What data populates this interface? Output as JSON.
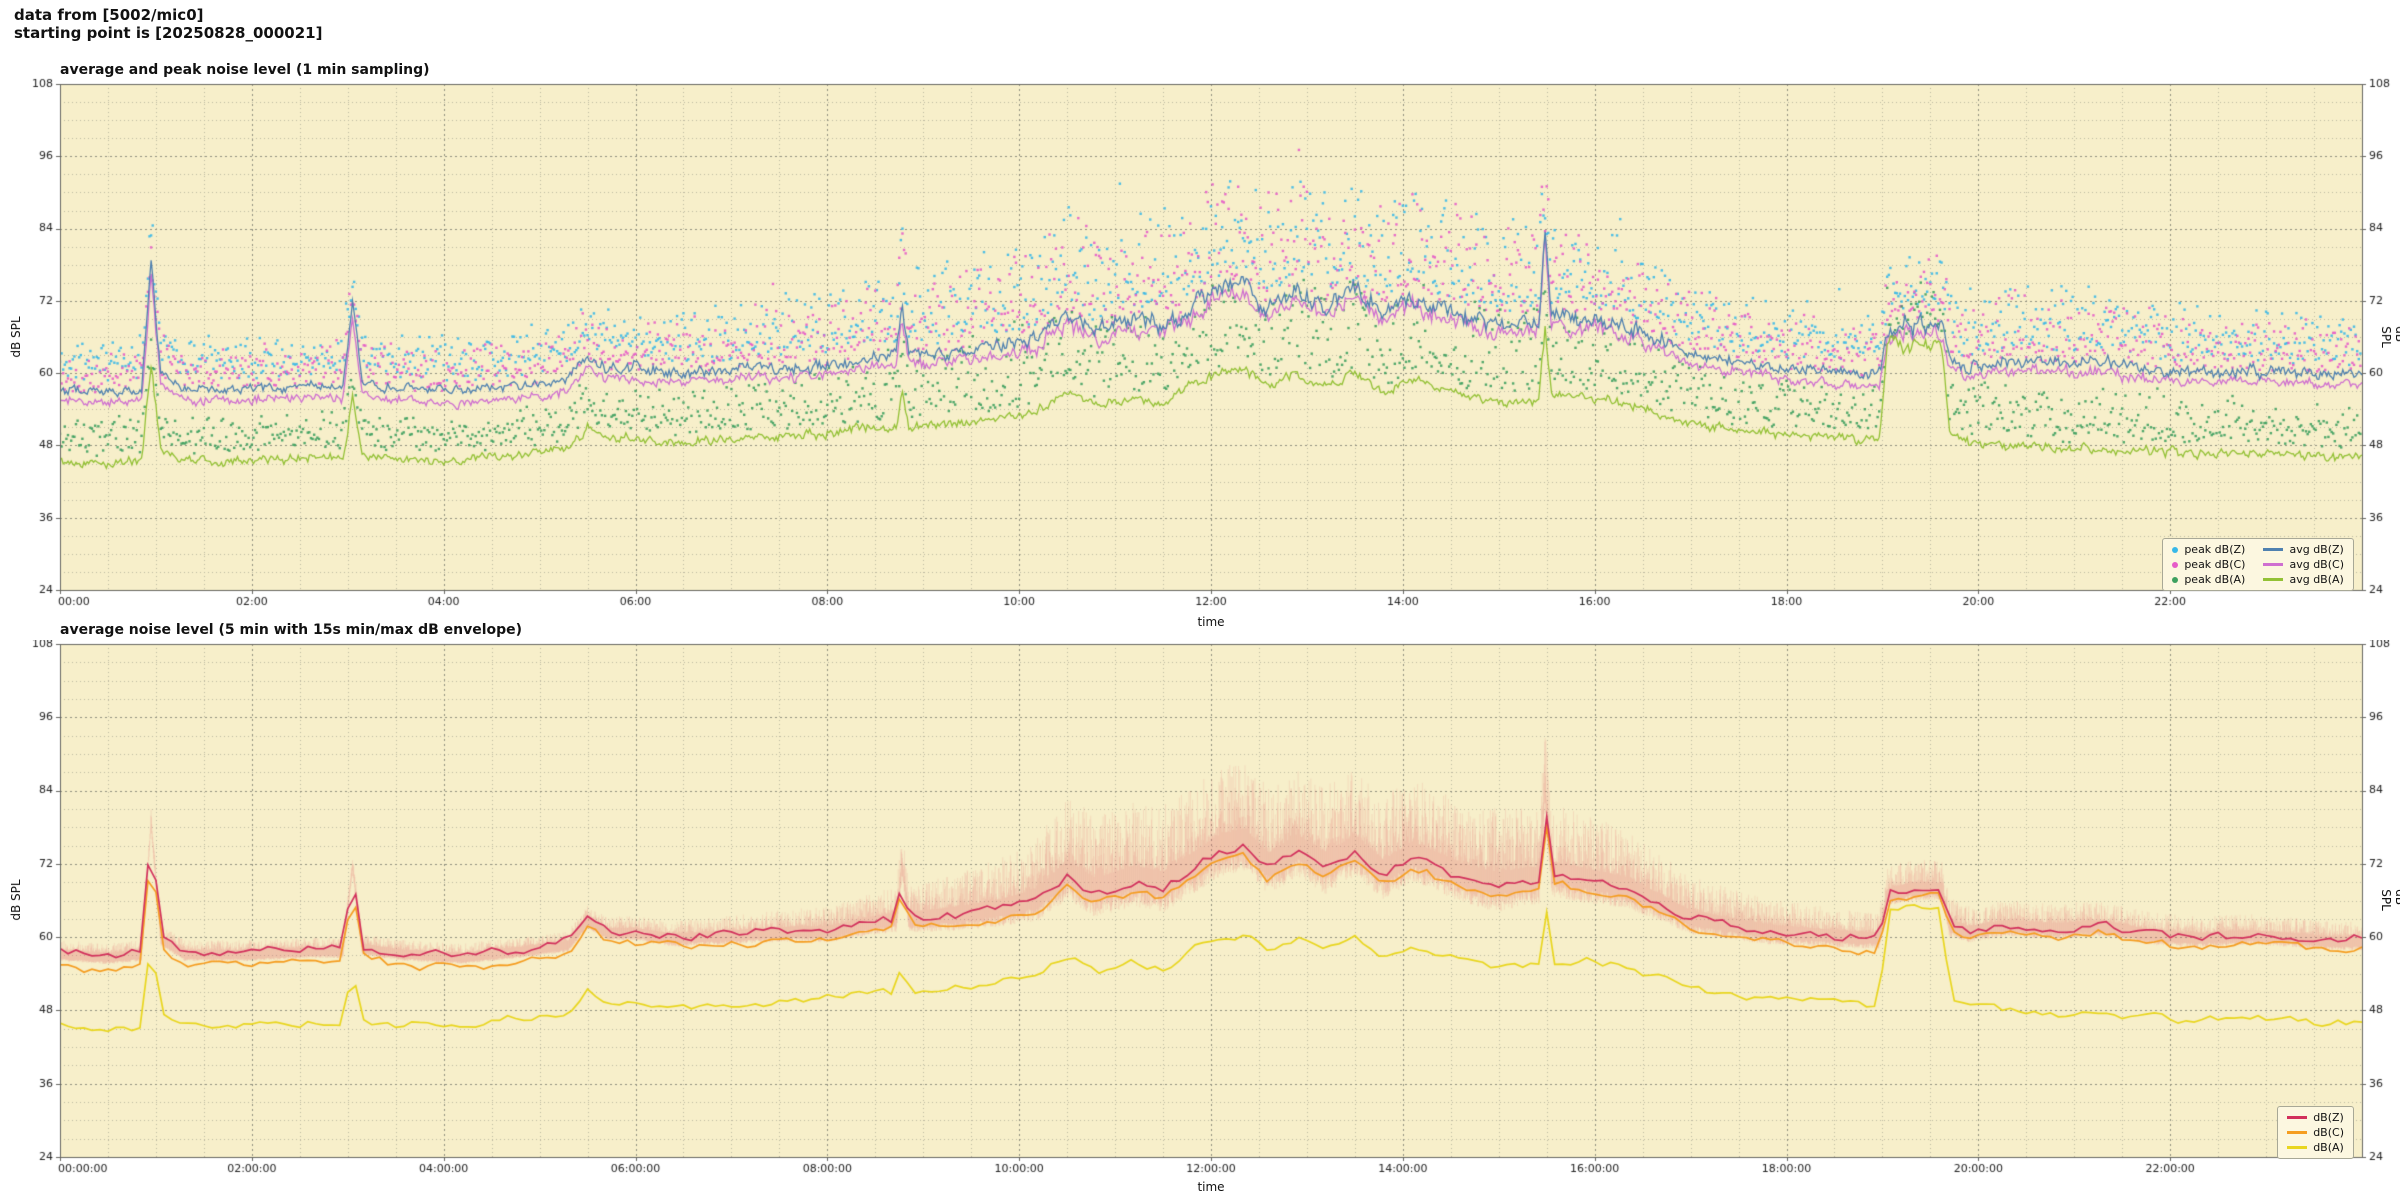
{
  "header": {
    "line1": "data from [5002/mic0]",
    "line2": "starting point is [20250828_000021]"
  },
  "palette": {
    "page_bg": "#ffffff",
    "plot_bg": "#f7efca",
    "grid_major": "#8f8f7e",
    "grid_minor": "#bcb8a0",
    "axis": "#666660",
    "text": "#222222",
    "legend_bg": "#fcf7e0",
    "legend_border": "#a8a896"
  },
  "trends": {
    "avgZ": [
      [
        0,
        57.5
      ],
      [
        0.5,
        57
      ],
      [
        0.85,
        57.5
      ],
      [
        0.95,
        79
      ],
      [
        1.05,
        60
      ],
      [
        1.3,
        57.5
      ],
      [
        2,
        57.5
      ],
      [
        2.6,
        58
      ],
      [
        2.95,
        58
      ],
      [
        3.05,
        72
      ],
      [
        3.15,
        58.5
      ],
      [
        3.6,
        57.5
      ],
      [
        4.2,
        57
      ],
      [
        4.8,
        58
      ],
      [
        5.3,
        59
      ],
      [
        5.5,
        63
      ],
      [
        5.7,
        61
      ],
      [
        6,
        61
      ],
      [
        6.4,
        60
      ],
      [
        7,
        60.5
      ],
      [
        7.6,
        61
      ],
      [
        8,
        61
      ],
      [
        8.5,
        62.5
      ],
      [
        8.72,
        63
      ],
      [
        8.78,
        72
      ],
      [
        8.85,
        63
      ],
      [
        9.3,
        63.5
      ],
      [
        9.8,
        64.5
      ],
      [
        10.2,
        66
      ],
      [
        10.5,
        70
      ],
      [
        10.8,
        67
      ],
      [
        11.2,
        69
      ],
      [
        11.5,
        68
      ],
      [
        11.8,
        71
      ],
      [
        12.1,
        74
      ],
      [
        12.35,
        75
      ],
      [
        12.6,
        71
      ],
      [
        12.9,
        74
      ],
      [
        13.2,
        71
      ],
      [
        13.5,
        74
      ],
      [
        13.8,
        70
      ],
      [
        14.1,
        73
      ],
      [
        14.4,
        71
      ],
      [
        14.7,
        69
      ],
      [
        15,
        68
      ],
      [
        15.3,
        69
      ],
      [
        15.42,
        69
      ],
      [
        15.48,
        84
      ],
      [
        15.55,
        70
      ],
      [
        15.9,
        69
      ],
      [
        16.3,
        68
      ],
      [
        16.6,
        66
      ],
      [
        17,
        63
      ],
      [
        17.4,
        62
      ],
      [
        17.8,
        61
      ],
      [
        18.3,
        60.5
      ],
      [
        18.8,
        60
      ],
      [
        18.97,
        60
      ],
      [
        19.05,
        67
      ],
      [
        19.3,
        68
      ],
      [
        19.55,
        68
      ],
      [
        19.62,
        68
      ],
      [
        19.7,
        62
      ],
      [
        19.9,
        61
      ],
      [
        20.3,
        62
      ],
      [
        20.8,
        61.5
      ],
      [
        21.3,
        62
      ],
      [
        21.8,
        60.5
      ],
      [
        22.3,
        60
      ],
      [
        22.8,
        60.5
      ],
      [
        23.3,
        60
      ],
      [
        23.7,
        59.5
      ],
      [
        24,
        59.5
      ]
    ],
    "avgC": [
      [
        0,
        55.5
      ],
      [
        0.5,
        55
      ],
      [
        0.85,
        55.5
      ],
      [
        0.95,
        76
      ],
      [
        1.05,
        58
      ],
      [
        1.3,
        55.5
      ],
      [
        2,
        55.5
      ],
      [
        2.6,
        56
      ],
      [
        2.95,
        56
      ],
      [
        3.05,
        69
      ],
      [
        3.15,
        56.5
      ],
      [
        3.6,
        55.5
      ],
      [
        4.2,
        55
      ],
      [
        4.8,
        56
      ],
      [
        5.3,
        57
      ],
      [
        5.5,
        61
      ],
      [
        5.7,
        59
      ],
      [
        6,
        59
      ],
      [
        6.4,
        58.5
      ],
      [
        7,
        59
      ],
      [
        7.6,
        59.5
      ],
      [
        8,
        59.5
      ],
      [
        8.5,
        61
      ],
      [
        8.72,
        61.5
      ],
      [
        8.78,
        70
      ],
      [
        8.85,
        61.5
      ],
      [
        9.3,
        62
      ],
      [
        9.8,
        63
      ],
      [
        10.2,
        64.5
      ],
      [
        10.5,
        68.5
      ],
      [
        10.8,
        65.5
      ],
      [
        11.2,
        67.5
      ],
      [
        11.5,
        66.5
      ],
      [
        11.8,
        69.5
      ],
      [
        12.1,
        72.5
      ],
      [
        12.35,
        73.5
      ],
      [
        12.6,
        69.5
      ],
      [
        12.9,
        72.5
      ],
      [
        13.2,
        69.5
      ],
      [
        13.5,
        72.5
      ],
      [
        13.8,
        68.5
      ],
      [
        14.1,
        71.5
      ],
      [
        14.4,
        69.5
      ],
      [
        14.7,
        67.5
      ],
      [
        15,
        66.5
      ],
      [
        15.3,
        67.5
      ],
      [
        15.42,
        67.5
      ],
      [
        15.48,
        82
      ],
      [
        15.55,
        68.5
      ],
      [
        15.9,
        67.5
      ],
      [
        16.3,
        66.5
      ],
      [
        16.6,
        64.5
      ],
      [
        17,
        61.5
      ],
      [
        17.4,
        60.5
      ],
      [
        17.8,
        59.5
      ],
      [
        18.3,
        58.5
      ],
      [
        18.8,
        58
      ],
      [
        18.97,
        58
      ],
      [
        19.05,
        66
      ],
      [
        19.3,
        67
      ],
      [
        19.55,
        67
      ],
      [
        19.62,
        67
      ],
      [
        19.7,
        60.5
      ],
      [
        19.9,
        59.5
      ],
      [
        20.3,
        60.5
      ],
      [
        20.8,
        60
      ],
      [
        21.3,
        60.5
      ],
      [
        21.8,
        59
      ],
      [
        22.3,
        58.5
      ],
      [
        22.8,
        59
      ],
      [
        23.3,
        58.5
      ],
      [
        23.7,
        58
      ],
      [
        24,
        58
      ]
    ],
    "avgA": [
      [
        0,
        45.5
      ],
      [
        0.5,
        45
      ],
      [
        0.85,
        45.5
      ],
      [
        0.95,
        62
      ],
      [
        1.05,
        47
      ],
      [
        1.3,
        45.5
      ],
      [
        2,
        45.5
      ],
      [
        2.6,
        46
      ],
      [
        2.95,
        46
      ],
      [
        3.05,
        56
      ],
      [
        3.15,
        46.5
      ],
      [
        3.6,
        45.5
      ],
      [
        4.2,
        45.5
      ],
      [
        4.8,
        46.5
      ],
      [
        5.3,
        47.5
      ],
      [
        5.5,
        51
      ],
      [
        5.7,
        49
      ],
      [
        6,
        49
      ],
      [
        6.4,
        48.5
      ],
      [
        7,
        49
      ],
      [
        7.6,
        49.5
      ],
      [
        8,
        50
      ],
      [
        8.5,
        51
      ],
      [
        8.72,
        51
      ],
      [
        8.78,
        58
      ],
      [
        8.85,
        51
      ],
      [
        9.3,
        51.5
      ],
      [
        9.8,
        52.5
      ],
      [
        10.2,
        54
      ],
      [
        10.5,
        57
      ],
      [
        10.8,
        54.5
      ],
      [
        11.2,
        56
      ],
      [
        11.5,
        55
      ],
      [
        11.8,
        58
      ],
      [
        12.1,
        60
      ],
      [
        12.35,
        61
      ],
      [
        12.6,
        57.5
      ],
      [
        12.9,
        60
      ],
      [
        13.2,
        57.5
      ],
      [
        13.5,
        60
      ],
      [
        13.8,
        56.5
      ],
      [
        14.1,
        59
      ],
      [
        14.4,
        57.5
      ],
      [
        14.7,
        56
      ],
      [
        15,
        55
      ],
      [
        15.3,
        55.5
      ],
      [
        15.42,
        55.5
      ],
      [
        15.48,
        68
      ],
      [
        15.55,
        56.5
      ],
      [
        15.9,
        56
      ],
      [
        16.3,
        55
      ],
      [
        16.6,
        53.5
      ],
      [
        17,
        51.5
      ],
      [
        17.4,
        50.5
      ],
      [
        17.8,
        50
      ],
      [
        18.3,
        49.5
      ],
      [
        18.8,
        49
      ],
      [
        18.97,
        49
      ],
      [
        19.05,
        64.5
      ],
      [
        19.3,
        65
      ],
      [
        19.55,
        65
      ],
      [
        19.62,
        65
      ],
      [
        19.7,
        50
      ],
      [
        19.9,
        48.5
      ],
      [
        20.3,
        48
      ],
      [
        20.8,
        47.5
      ],
      [
        21.3,
        47.5
      ],
      [
        21.8,
        47
      ],
      [
        22.3,
        46.5
      ],
      [
        22.8,
        47
      ],
      [
        23.3,
        46.5
      ],
      [
        23.7,
        46
      ],
      [
        24,
        46
      ]
    ]
  },
  "chart_data": [
    {
      "type": "line",
      "title": "average and peak noise level (1 min sampling)",
      "xlabel": "time",
      "ylabel_left": "dB SPL",
      "ylabel_right": "dB SPL",
      "ylim": [
        24,
        108
      ],
      "yticks": [
        24,
        36,
        48,
        60,
        72,
        84,
        96,
        108
      ],
      "xlim_hours": [
        0,
        24
      ],
      "sample_minutes": 1,
      "grid": true,
      "xticks_hours": [
        0,
        2,
        4,
        6,
        8,
        10,
        12,
        14,
        16,
        18,
        20,
        22
      ],
      "xtick_labels": [
        "00:00",
        "02:00",
        "04:00",
        "06:00",
        "08:00",
        "10:00",
        "12:00",
        "14:00",
        "16:00",
        "18:00",
        "20:00",
        "22:00"
      ],
      "legend": {
        "position": "bottom-right",
        "columns": [
          [
            "peak dB(Z)",
            "peak dB(C)",
            "peak dB(A)"
          ],
          [
            "avg dB(Z)",
            "avg dB(C)",
            "avg dB(A)"
          ]
        ]
      },
      "series": [
        {
          "name": "peak dB(Z)",
          "style": "scatter",
          "color": "#38b8e8",
          "trend": "avgZ",
          "offset": 3,
          "spread": [
            [
              0,
              5
            ],
            [
              6,
              6
            ],
            [
              8,
              9
            ],
            [
              10,
              14
            ],
            [
              12,
              16
            ],
            [
              15,
              16
            ],
            [
              16,
              13
            ],
            [
              17,
              9
            ],
            [
              18,
              7
            ],
            [
              19,
              7
            ],
            [
              20,
              10
            ],
            [
              22,
              8
            ],
            [
              24,
              6
            ]
          ],
          "seed": 11
        },
        {
          "name": "peak dB(C)",
          "style": "scatter",
          "color": "#e65cc8",
          "trend": "avgC",
          "offset": 3,
          "spread": [
            [
              0,
              5
            ],
            [
              6,
              6
            ],
            [
              8,
              9
            ],
            [
              10,
              14
            ],
            [
              12,
              16
            ],
            [
              15,
              16
            ],
            [
              16,
              13
            ],
            [
              17,
              9
            ],
            [
              18,
              7
            ],
            [
              19,
              7
            ],
            [
              20,
              10
            ],
            [
              22,
              8
            ],
            [
              24,
              6
            ]
          ],
          "seed": 22
        },
        {
          "name": "peak dB(A)",
          "style": "scatter",
          "color": "#3da05f",
          "trend": "avgA",
          "offset": 2.5,
          "spread": [
            [
              0,
              4
            ],
            [
              6,
              5
            ],
            [
              8,
              8
            ],
            [
              10,
              12
            ],
            [
              12,
              13
            ],
            [
              15,
              13
            ],
            [
              16,
              11
            ],
            [
              17,
              8
            ],
            [
              18,
              6
            ],
            [
              19,
              6
            ],
            [
              20,
              8
            ],
            [
              22,
              7
            ],
            [
              24,
              5
            ]
          ],
          "seed": 33
        },
        {
          "name": "avg dB(C)",
          "style": "line",
          "color": "#cf6fd0",
          "trend": "avgC",
          "seed": 44
        },
        {
          "name": "avg dB(A)",
          "style": "line",
          "color": "#93c135",
          "trend": "avgA",
          "seed": 55
        },
        {
          "name": "avg dB(Z)",
          "style": "line",
          "color": "#4f81b0",
          "trend": "avgZ",
          "seed": 66
        }
      ]
    },
    {
      "type": "line",
      "title": "average noise level (5 min with 15s min/max dB envelope)",
      "xlabel": "time",
      "ylabel_left": "dB SPL",
      "ylabel_right": "dB SPL",
      "ylim": [
        24,
        108
      ],
      "yticks": [
        24,
        36,
        48,
        60,
        72,
        84,
        96,
        108
      ],
      "xlim_hours": [
        0,
        24
      ],
      "sample_minutes": 5,
      "grid": true,
      "xticks_hours": [
        0,
        2,
        4,
        6,
        8,
        10,
        12,
        14,
        16,
        18,
        20,
        22
      ],
      "xtick_labels": [
        "00:00:00",
        "02:00:00",
        "04:00:00",
        "06:00:00",
        "08:00:00",
        "10:00:00",
        "12:00:00",
        "14:00:00",
        "16:00:00",
        "18:00:00",
        "20:00:00",
        "22:00:00"
      ],
      "legend": {
        "position": "bottom-right",
        "columns": [
          [
            "dB(Z)",
            "dB(C)",
            "dB(A)"
          ]
        ]
      },
      "series": [
        {
          "name": "envelope 15s min/max",
          "style": "envelope",
          "color": "#e87878",
          "trend": "avgZ",
          "amp": [
            [
              0,
              2
            ],
            [
              5,
              2
            ],
            [
              6,
              2.5
            ],
            [
              7,
              3
            ],
            [
              8,
              4
            ],
            [
              9,
              6
            ],
            [
              10,
              9
            ],
            [
              10.5,
              13
            ],
            [
              12,
              14
            ],
            [
              13,
              14
            ],
            [
              14,
              13
            ],
            [
              15,
              13
            ],
            [
              16,
              11
            ],
            [
              16.5,
              9
            ],
            [
              17,
              7
            ],
            [
              18,
              5
            ],
            [
              18.9,
              4
            ],
            [
              19.3,
              5
            ],
            [
              20,
              4
            ],
            [
              21,
              4
            ],
            [
              22,
              3.5
            ],
            [
              24,
              3
            ]
          ],
          "seed": 77
        },
        {
          "name": "dB(A)",
          "style": "line",
          "color": "#e9d61f",
          "trend": "avgA",
          "seed": 88
        },
        {
          "name": "dB(C)",
          "style": "line",
          "color": "#f59d20",
          "trend": "avgC",
          "seed": 99
        },
        {
          "name": "dB(Z)",
          "style": "line",
          "color": "#d2305c",
          "trend": "avgZ",
          "seed": 111
        }
      ]
    }
  ]
}
